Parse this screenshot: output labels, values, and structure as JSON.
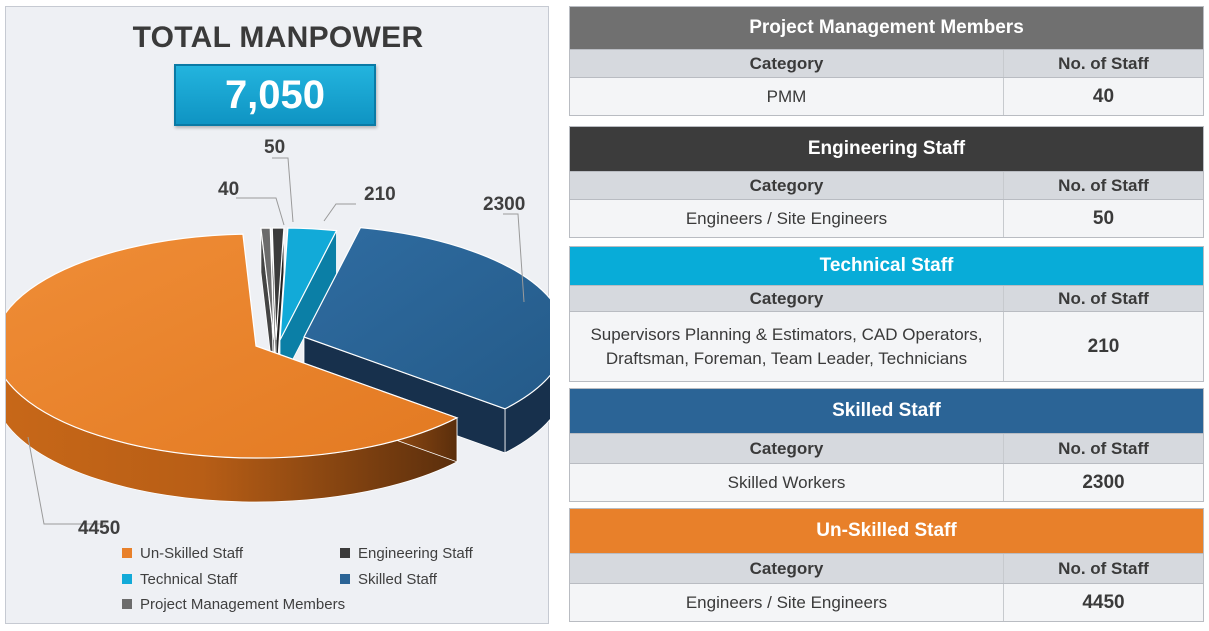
{
  "title": "TOTAL MANPOWER",
  "total": "7,050",
  "chart_data": {
    "type": "pie",
    "title": "TOTAL MANPOWER",
    "categories": [
      "Un-Skilled Staff",
      "Engineering Staff",
      "Technical Staff",
      "Skilled Staff",
      "Project Management Members"
    ],
    "values": [
      4450,
      50,
      210,
      2300,
      40
    ],
    "labels": [
      "4450",
      "50",
      "210",
      "2300",
      "40"
    ],
    "colors": [
      "#e8802a",
      "#3b3b3b",
      "#12aad8",
      "#2b6496",
      "#6c6c6c"
    ],
    "legend_position": "bottom"
  },
  "tables": [
    {
      "title": "Project Management Members",
      "color": "#707070",
      "col1": "Category",
      "col2": "No. of Staff",
      "rows": [
        {
          "category": "PMM",
          "staff": "40"
        }
      ]
    },
    {
      "title": "Engineering Staff",
      "color": "#3c3c3c",
      "col1": "Category",
      "col2": "No. of Staff",
      "rows": [
        {
          "category": "Engineers / Site Engineers",
          "staff": "50"
        }
      ]
    },
    {
      "title": "Technical Staff",
      "color": "#08acd8",
      "col1": "Category",
      "col2": "No. of Staff",
      "rows": [
        {
          "category": "Supervisors Planning & Estimators, CAD Operators, Draftsman, Foreman, Team Leader, Technicians",
          "staff": "210"
        }
      ]
    },
    {
      "title": "Skilled Staff",
      "color": "#2b6496",
      "col1": "Category",
      "col2": "No. of Staff",
      "rows": [
        {
          "category": "Skilled Workers",
          "staff": "2300"
        }
      ]
    },
    {
      "title": "Un-Skilled Staff",
      "color": "#e8802a",
      "col1": "Category",
      "col2": "No. of Staff",
      "rows": [
        {
          "category": "Engineers / Site Engineers",
          "staff": "4450"
        }
      ]
    }
  ]
}
